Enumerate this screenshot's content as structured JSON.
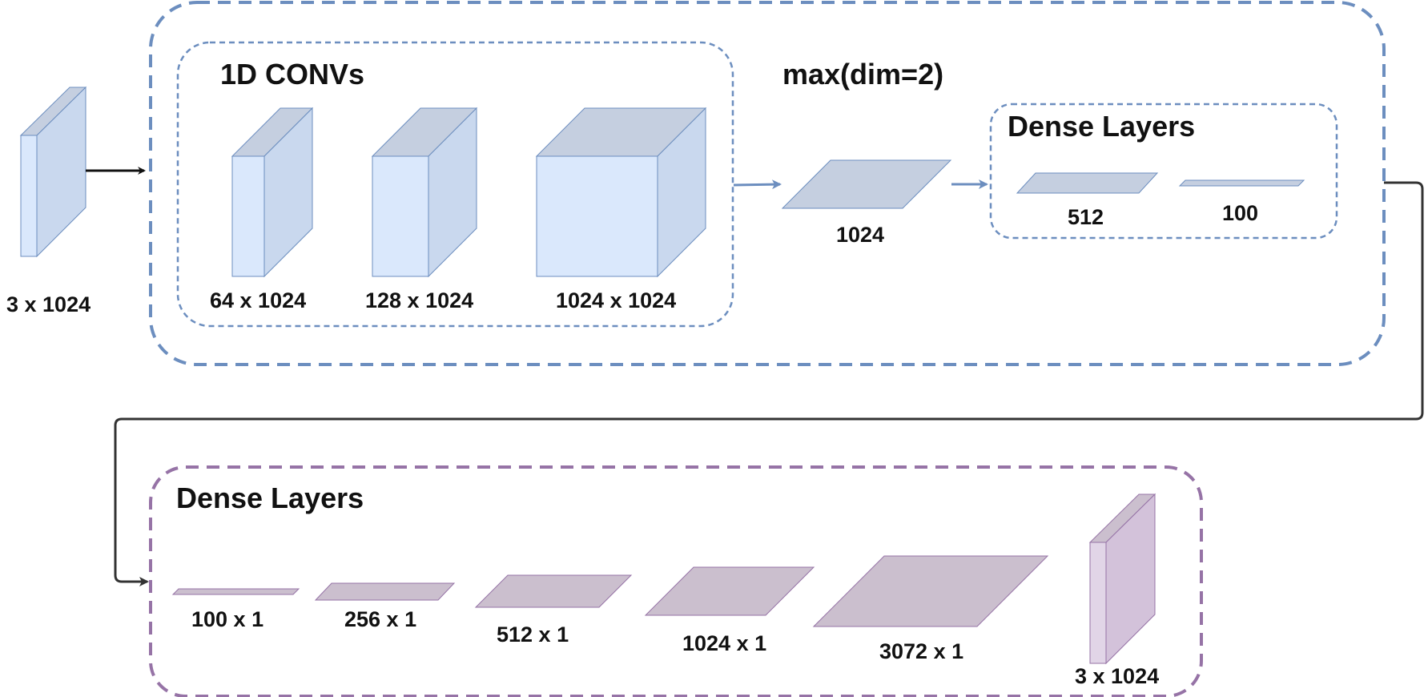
{
  "colors": {
    "encoder_border": "#6c8ebf",
    "decoder_border": "#9673a6",
    "blue_front": "#dae8fc",
    "blue_side": "#c9d8ee",
    "blue_top": "#c5cfe0",
    "blue_plane": "#c5cfe0",
    "purple_front": "#e1d5e7",
    "purple_side": "#d3c2da",
    "purple_top": "#cbbfce",
    "purple_plane": "#cbbfce",
    "connector": "#333333",
    "text": "#111111"
  },
  "input": {
    "label": "3 x 1024"
  },
  "encoder": {
    "conv_group": {
      "title": "1D CONVs",
      "layers": [
        {
          "label": "64 x 1024"
        },
        {
          "label": "128 x 1024"
        },
        {
          "label": "1024 x 1024"
        }
      ]
    },
    "pool": {
      "title": "max(dim=2)",
      "label": "1024"
    },
    "dense_group": {
      "title": "Dense Layers",
      "layers": [
        {
          "label": "512"
        },
        {
          "label": "100"
        }
      ]
    }
  },
  "decoder": {
    "title": "Dense Layers",
    "layers": [
      {
        "label": "100 x 1"
      },
      {
        "label": "256 x 1"
      },
      {
        "label": "512 x 1"
      },
      {
        "label": "1024 x 1"
      },
      {
        "label": "3072 x 1"
      }
    ],
    "output": {
      "label": "3 x 1024"
    }
  }
}
